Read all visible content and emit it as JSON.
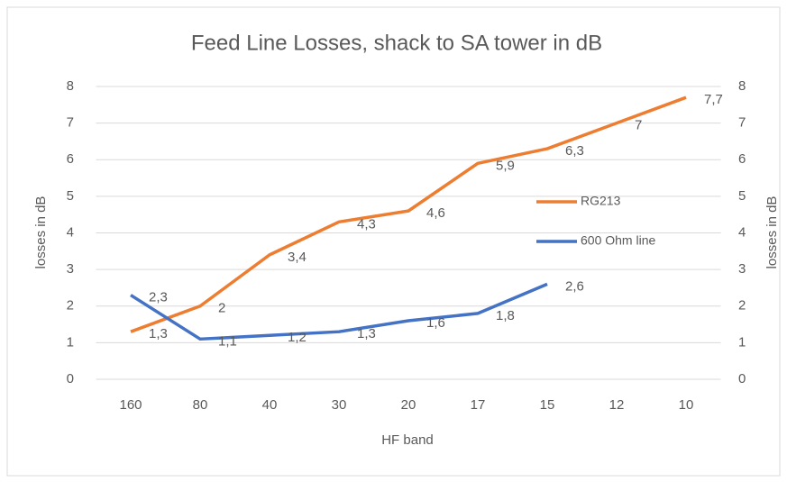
{
  "chart_data": {
    "type": "line",
    "title": "Feed Line Losses, shack to SA tower in dB",
    "x_label": "HF band",
    "y_label": "losses in dB",
    "y2_label": "losses in dB",
    "categories": [
      "160",
      "80",
      "40",
      "30",
      "20",
      "17",
      "15",
      "12",
      "10"
    ],
    "series": [
      {
        "name": "RG213",
        "color": "#ed7d31",
        "values": [
          1.3,
          2,
          3.4,
          4.3,
          4.6,
          5.9,
          6.3,
          7,
          7.7
        ],
        "value_labels": [
          "1,3",
          "2",
          "3,4",
          "4,3",
          "4,6",
          "5,9",
          "6,3",
          "7",
          "7,7"
        ]
      },
      {
        "name": "600 Ohm line",
        "color": "#4472c4",
        "values": [
          2.3,
          1.1,
          1.2,
          1.3,
          1.6,
          1.8,
          2.6,
          null,
          null
        ],
        "value_labels": [
          "2,3",
          "1,1",
          "1,2",
          "1,3",
          "1,6",
          "1,8",
          "2,6",
          null,
          null
        ]
      }
    ],
    "ylim": [
      0,
      8
    ],
    "yticks": [
      0,
      1,
      2,
      3,
      4,
      5,
      6,
      7,
      8
    ],
    "y2lim": [
      0,
      8
    ],
    "y2ticks": [
      0,
      1,
      2,
      3,
      4,
      5,
      6,
      7,
      8
    ],
    "grid": true,
    "legend": "right"
  }
}
